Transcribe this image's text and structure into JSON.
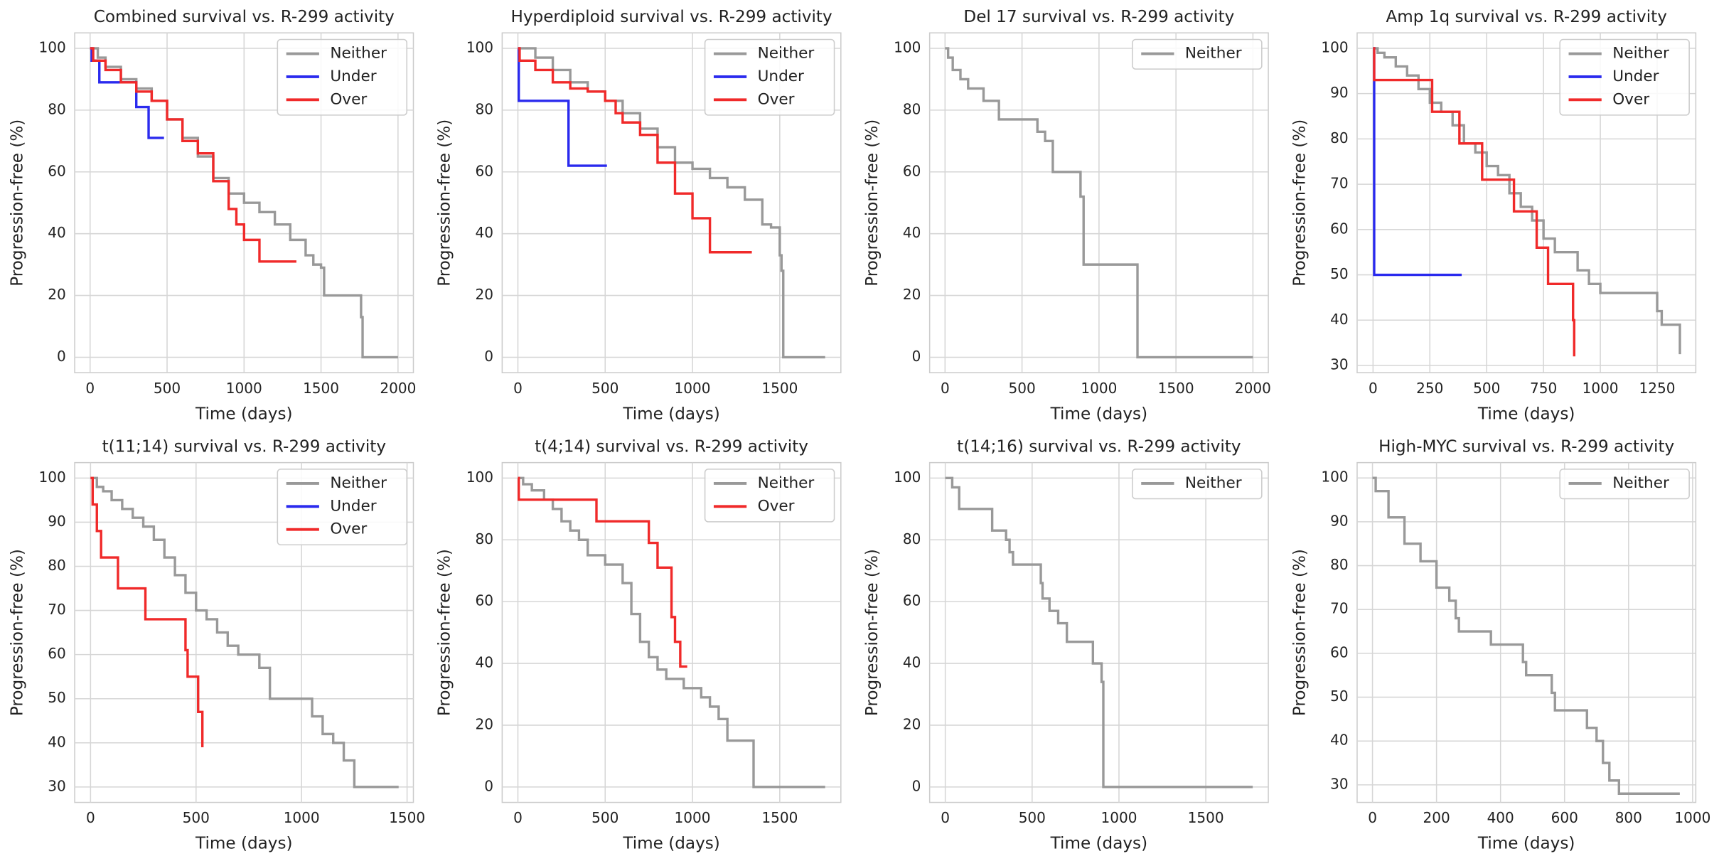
{
  "chart_data": [
    {
      "type": "line",
      "drawstyle": "steps-post",
      "title": "Combined survival vs. R-299 activity",
      "xlabel": "Time (days)",
      "ylabel": "Progression-free (%)",
      "grid": true,
      "legend": "upper right",
      "xlim": [
        -100,
        2100
      ],
      "xticks": [
        0,
        500,
        1000,
        1500,
        2000
      ],
      "ylim": [
        -5,
        105
      ],
      "yticks": [
        0,
        20,
        40,
        60,
        80,
        100
      ],
      "series": [
        {
          "name": "Neither",
          "color": "#999999",
          "x": [
            0,
            50,
            100,
            200,
            300,
            400,
            500,
            600,
            700,
            800,
            900,
            1000,
            1100,
            1200,
            1300,
            1400,
            1450,
            1500,
            1520,
            1760,
            1770,
            2000
          ],
          "values": [
            100,
            97,
            94,
            90,
            87,
            83,
            77,
            71,
            65,
            58,
            53,
            50,
            47,
            43,
            38,
            33,
            30,
            29,
            20,
            13,
            0,
            0
          ]
        },
        {
          "name": "Under",
          "color": "#2a2aee",
          "x": [
            0,
            10,
            60,
            300,
            380,
            480
          ],
          "values": [
            100,
            96,
            89,
            81,
            71,
            71
          ]
        },
        {
          "name": "Over",
          "color": "#f02a2a",
          "x": [
            0,
            20,
            100,
            200,
            300,
            400,
            500,
            600,
            700,
            800,
            900,
            950,
            1000,
            1100,
            1340
          ],
          "values": [
            100,
            96,
            93,
            89,
            86,
            83,
            77,
            70,
            66,
            57,
            48,
            43,
            38,
            31,
            31
          ]
        }
      ]
    },
    {
      "type": "line",
      "drawstyle": "steps-post",
      "title": "Hyperdiploid survival vs. R-299 activity",
      "xlabel": "Time (days)",
      "ylabel": "Progression-free (%)",
      "grid": true,
      "legend": "upper right",
      "xlim": [
        -90,
        1850
      ],
      "xticks": [
        0,
        500,
        1000,
        1500
      ],
      "ylim": [
        -5,
        105
      ],
      "yticks": [
        0,
        20,
        40,
        60,
        80,
        100
      ],
      "series": [
        {
          "name": "Neither",
          "color": "#999999",
          "x": [
            0,
            100,
            200,
            300,
            400,
            500,
            600,
            700,
            800,
            900,
            1000,
            1100,
            1200,
            1300,
            1400,
            1450,
            1500,
            1510,
            1520,
            1760
          ],
          "values": [
            100,
            97,
            93,
            89,
            86,
            83,
            79,
            74,
            68,
            63,
            61,
            58,
            55,
            51,
            43,
            42,
            33,
            28,
            0,
            0
          ]
        },
        {
          "name": "Under",
          "color": "#2a2aee",
          "x": [
            0,
            5,
            290,
            510
          ],
          "values": [
            100,
            83,
            62,
            62
          ]
        },
        {
          "name": "Over",
          "color": "#f02a2a",
          "x": [
            0,
            10,
            100,
            200,
            300,
            400,
            500,
            560,
            600,
            700,
            800,
            900,
            1000,
            1100,
            1340
          ],
          "values": [
            100,
            96,
            93,
            89,
            87,
            86,
            83,
            79,
            76,
            72,
            63,
            53,
            45,
            34,
            34
          ]
        }
      ]
    },
    {
      "type": "line",
      "drawstyle": "steps-post",
      "title": "Del 17 survival vs. R-299 activity",
      "xlabel": "Time (days)",
      "ylabel": "Progression-free (%)",
      "grid": true,
      "legend": "upper right",
      "xlim": [
        -100,
        2100
      ],
      "xticks": [
        0,
        500,
        1000,
        1500,
        2000
      ],
      "ylim": [
        -5,
        105
      ],
      "yticks": [
        0,
        20,
        40,
        60,
        80,
        100
      ],
      "series": [
        {
          "name": "Neither",
          "color": "#999999",
          "x": [
            0,
            20,
            50,
            100,
            150,
            250,
            350,
            500,
            600,
            650,
            700,
            850,
            880,
            900,
            1250,
            2000
          ],
          "values": [
            100,
            97,
            93,
            90,
            87,
            83,
            77,
            77,
            73,
            70,
            60,
            60,
            52,
            30,
            0,
            0
          ]
        }
      ]
    },
    {
      "type": "line",
      "drawstyle": "steps-post",
      "title": "Amp 1q survival vs. R-299 activity",
      "xlabel": "Time (days)",
      "ylabel": "Progression-free (%)",
      "grid": true,
      "legend": "upper right",
      "xlim": [
        -70,
        1420
      ],
      "xticks": [
        0,
        250,
        500,
        750,
        1000,
        1250
      ],
      "ylim": [
        28.4,
        103.4
      ],
      "yticks": [
        30,
        40,
        50,
        60,
        70,
        80,
        90,
        100
      ],
      "series": [
        {
          "name": "Neither",
          "color": "#999999",
          "x": [
            0,
            20,
            50,
            100,
            150,
            200,
            250,
            300,
            350,
            400,
            450,
            500,
            550,
            600,
            650,
            700,
            750,
            800,
            900,
            950,
            1000,
            1150,
            1250,
            1270,
            1350
          ],
          "values": [
            100,
            99,
            98,
            96,
            94,
            91,
            88,
            86,
            83,
            79,
            77,
            74,
            72,
            68,
            65,
            62,
            58,
            55,
            51,
            48,
            46,
            46,
            42,
            39,
            32.5
          ]
        },
        {
          "name": "Under",
          "color": "#2a2aee",
          "x": [
            0,
            5,
            390
          ],
          "values": [
            100,
            50,
            50
          ]
        },
        {
          "name": "Over",
          "color": "#f02a2a",
          "x": [
            0,
            5,
            260,
            380,
            480,
            620,
            720,
            770,
            880,
            885
          ],
          "values": [
            100,
            93,
            86,
            79,
            71,
            64,
            56,
            48,
            40,
            32
          ]
        }
      ]
    },
    {
      "type": "line",
      "drawstyle": "steps-post",
      "title": "t(11;14) survival vs. R-299 activity",
      "xlabel": "Time (days)",
      "ylabel": "Progression-free (%)",
      "grid": true,
      "legend": "upper right",
      "xlim": [
        -75,
        1530
      ],
      "xticks": [
        0,
        500,
        1000,
        1500
      ],
      "ylim": [
        26.5,
        103.5
      ],
      "yticks": [
        30,
        40,
        50,
        60,
        70,
        80,
        90,
        100
      ],
      "series": [
        {
          "name": "Neither",
          "color": "#999999",
          "x": [
            0,
            30,
            60,
            100,
            150,
            200,
            250,
            300,
            350,
            400,
            450,
            500,
            550,
            600,
            650,
            700,
            800,
            850,
            950,
            1050,
            1100,
            1150,
            1200,
            1250,
            1460
          ],
          "values": [
            100,
            98,
            97,
            95,
            93,
            91,
            89,
            86,
            82,
            78,
            74,
            70,
            68,
            65,
            62,
            60,
            57,
            50,
            50,
            46,
            42,
            40,
            36,
            30,
            30
          ]
        },
        {
          "name": "Under",
          "color": "#2a2aee",
          "x": [],
          "values": []
        },
        {
          "name": "Over",
          "color": "#f02a2a",
          "x": [
            0,
            10,
            30,
            50,
            130,
            260,
            450,
            460,
            510,
            530
          ],
          "values": [
            100,
            94,
            88,
            82,
            75,
            68,
            61,
            55,
            47,
            39
          ]
        }
      ]
    },
    {
      "type": "line",
      "drawstyle": "steps-post",
      "title": "t(4;14) survival vs. R-299 activity",
      "xlabel": "Time (days)",
      "ylabel": "Progression-free (%)",
      "grid": true,
      "legend": "upper right",
      "xlim": [
        -90,
        1850
      ],
      "xticks": [
        0,
        500,
        1000,
        1500
      ],
      "ylim": [
        -5,
        105
      ],
      "yticks": [
        0,
        20,
        40,
        60,
        80,
        100
      ],
      "series": [
        {
          "name": "Neither",
          "color": "#999999",
          "x": [
            0,
            30,
            80,
            150,
            200,
            250,
            300,
            350,
            400,
            500,
            550,
            600,
            650,
            700,
            750,
            800,
            850,
            900,
            950,
            1050,
            1100,
            1150,
            1200,
            1350,
            1760
          ],
          "values": [
            100,
            98,
            96,
            93,
            90,
            86,
            83,
            80,
            75,
            72,
            72,
            66,
            56,
            47,
            42,
            38,
            35,
            35,
            32,
            29,
            26,
            22,
            15,
            0,
            0
          ]
        },
        {
          "name": "Over",
          "color": "#f02a2a",
          "x": [
            0,
            5,
            450,
            750,
            800,
            880,
            900,
            930,
            970
          ],
          "values": [
            100,
            93,
            86,
            79,
            71,
            55,
            47,
            39,
            39
          ]
        }
      ]
    },
    {
      "type": "line",
      "drawstyle": "steps-post",
      "title": "t(14;16) survival vs. R-299 activity",
      "xlabel": "Time (days)",
      "ylabel": "Progression-free (%)",
      "grid": true,
      "legend": "upper right",
      "xlim": [
        -90,
        1860
      ],
      "xticks": [
        0,
        500,
        1000,
        1500
      ],
      "ylim": [
        -5,
        105
      ],
      "yticks": [
        0,
        20,
        40,
        60,
        80,
        100
      ],
      "series": [
        {
          "name": "Neither",
          "color": "#999999",
          "x": [
            0,
            40,
            80,
            270,
            350,
            370,
            390,
            550,
            560,
            600,
            650,
            700,
            850,
            900,
            910,
            1770
          ],
          "values": [
            100,
            97,
            90,
            83,
            80,
            76,
            72,
            66,
            61,
            57,
            53,
            47,
            40,
            34,
            0,
            0
          ]
        }
      ]
    },
    {
      "type": "line",
      "drawstyle": "steps-post",
      "title": "High-MYC survival vs. R-299 activity",
      "xlabel": "Time (days)",
      "ylabel": "Progression-free (%)",
      "grid": true,
      "legend": "upper right",
      "xlim": [
        -48,
        1010
      ],
      "xticks": [
        0,
        200,
        400,
        600,
        800,
        1000
      ],
      "ylim": [
        26,
        103.5
      ],
      "yticks": [
        30,
        40,
        50,
        60,
        70,
        80,
        90,
        100
      ],
      "series": [
        {
          "name": "Neither",
          "color": "#999999",
          "x": [
            0,
            10,
            50,
            100,
            150,
            200,
            240,
            260,
            270,
            370,
            470,
            480,
            560,
            570,
            670,
            700,
            720,
            740,
            770,
            960
          ],
          "values": [
            100,
            97,
            91,
            85,
            81,
            75,
            72,
            68,
            65,
            62,
            58,
            55,
            51,
            47,
            43,
            40,
            35,
            31,
            28,
            28
          ]
        }
      ]
    }
  ]
}
